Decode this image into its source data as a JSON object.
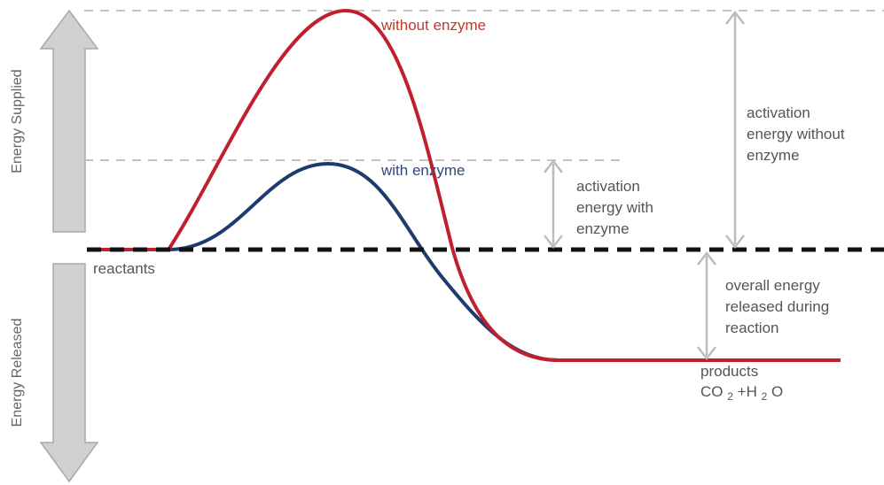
{
  "side_labels": {
    "supplied": "Energy Supplied",
    "released": "Energy Released"
  },
  "curves": {
    "without_enzyme": "without enzyme",
    "with_enzyme": "with enzyme"
  },
  "annotations": {
    "activation_with": [
      "activation",
      "energy with",
      "enzyme"
    ],
    "activation_without": [
      "activation",
      "energy without",
      "enzyme"
    ],
    "overall": [
      "overall energy",
      "released during",
      "reaction"
    ],
    "reactants": "reactants",
    "products": "products",
    "products_formula": {
      "a": "CO",
      "a_sub": "2",
      "plus": "+H",
      "b_sub": "2",
      "b": "O"
    }
  },
  "colors": {
    "without_enzyme": "#c0202e",
    "with_enzyme": "#1f3a6e",
    "baseline": "#111111",
    "guide": "#bbbbbb",
    "arrow": "#c8c8c8"
  },
  "icons": {
    "up_arrow": "up-arrow-icon",
    "down_arrow": "down-arrow-icon"
  }
}
